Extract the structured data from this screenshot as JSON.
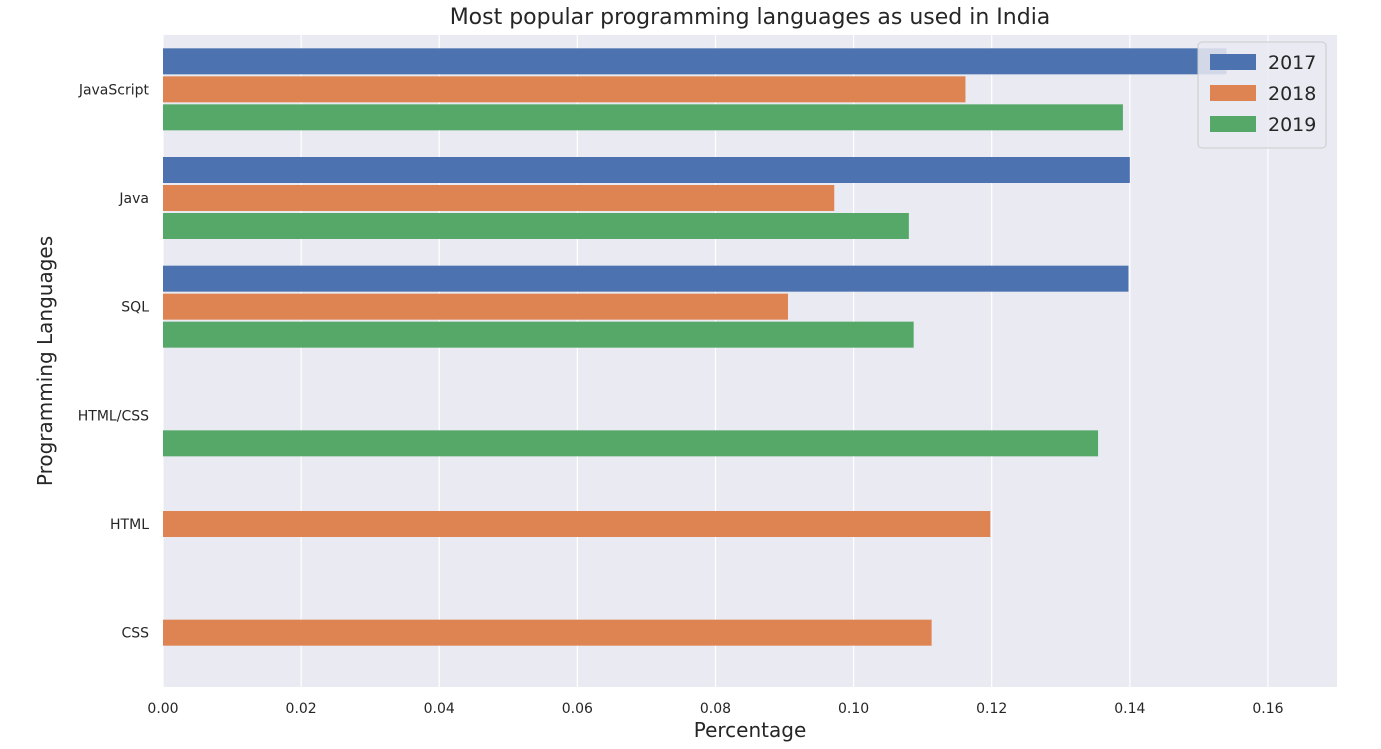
{
  "chart_data": {
    "type": "bar",
    "orientation": "horizontal",
    "title": "Most popular programming languages as used in India",
    "xlabel": "Percentage",
    "ylabel": "Programming Languages",
    "xlim": [
      0,
      0.17
    ],
    "xticks": [
      "0.00",
      "0.02",
      "0.04",
      "0.06",
      "0.08",
      "0.10",
      "0.12",
      "0.14",
      "0.16"
    ],
    "categories": [
      "JavaScript",
      "Java",
      "SQL",
      "HTML/CSS",
      "HTML",
      "CSS"
    ],
    "series": [
      {
        "name": "2017",
        "color": "#4c72b0",
        "values": [
          0.154,
          0.14,
          0.1398,
          null,
          null,
          null
        ]
      },
      {
        "name": "2018",
        "color": "#dd8452",
        "values": [
          0.1162,
          0.0972,
          0.0905,
          null,
          0.1198,
          0.1113
        ]
      },
      {
        "name": "2019",
        "color": "#55a868",
        "values": [
          0.139,
          0.108,
          0.1087,
          0.1354,
          null,
          null
        ]
      }
    ],
    "grid": true,
    "legend_position": "top-right",
    "background_color": "#eaeaf2"
  }
}
